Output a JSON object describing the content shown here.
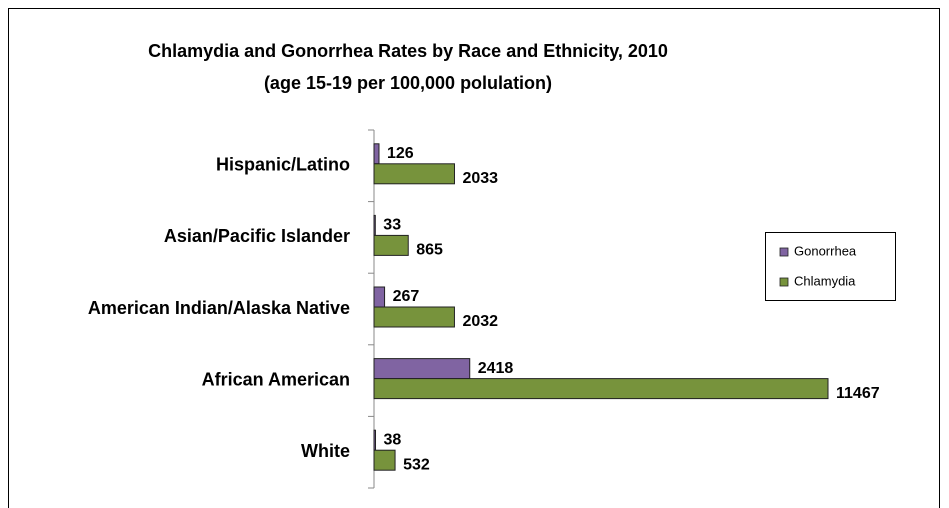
{
  "chart_data": {
    "type": "bar",
    "orientation": "horizontal",
    "title": "Chlamydia and Gonorrhea Rates by Race and Ethnicity, 2010",
    "subtitle": "(age 15-19 per 100,000 polulation)",
    "categories": [
      "Hispanic/Latino",
      "Asian/Pacific Islander",
      "American Indian/Alaska Native",
      "African American",
      "White"
    ],
    "series": [
      {
        "name": "Gonorrhea",
        "color": "#8064a2",
        "values": [
          126,
          33,
          267,
          2418,
          38
        ]
      },
      {
        "name": "Chlamydia",
        "color": "#77933c",
        "values": [
          2033,
          865,
          2032,
          11467,
          532
        ]
      }
    ],
    "legend": "right"
  }
}
